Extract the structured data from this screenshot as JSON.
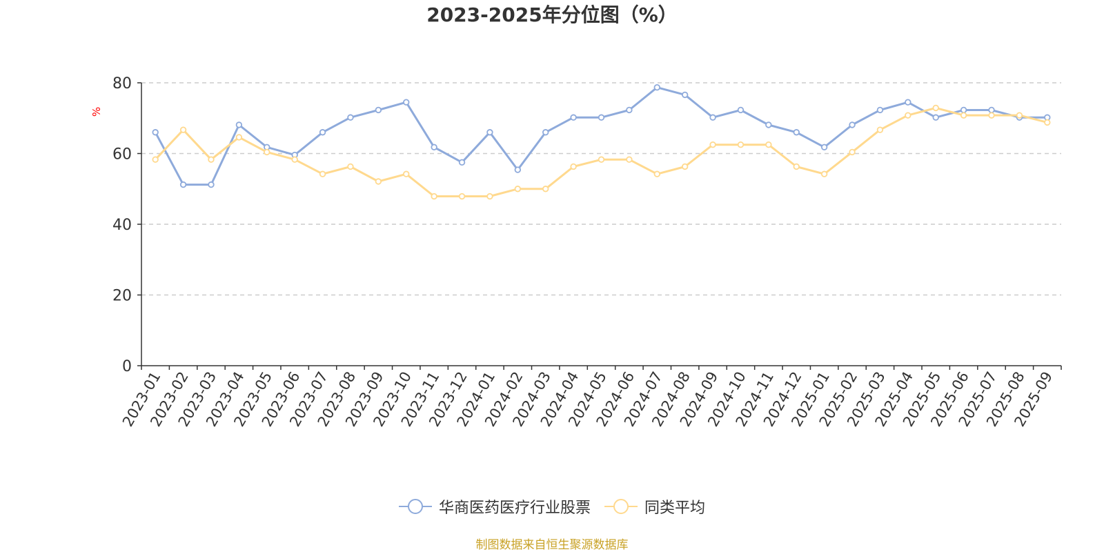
{
  "chart_data": {
    "type": "line",
    "title": "2023-2025年分位图（%）",
    "ylabel": "%",
    "xlabel": "",
    "ylim": [
      0,
      80
    ],
    "yticks": [
      0,
      20,
      40,
      60,
      80
    ],
    "grid": true,
    "legend_position": "bottom",
    "categories": [
      "2023-01",
      "2023-02",
      "2023-03",
      "2023-04",
      "2023-05",
      "2023-06",
      "2023-07",
      "2023-08",
      "2023-09",
      "2023-10",
      "2023-11",
      "2023-12",
      "2024-01",
      "2024-02",
      "2024-03",
      "2024-04",
      "2024-05",
      "2024-06",
      "2024-07",
      "2024-08",
      "2024-09",
      "2024-10",
      "2024-11",
      "2024-12",
      "2025-01",
      "2025-02",
      "2025-03",
      "2025-04",
      "2025-05",
      "2025-06",
      "2025-07",
      "2025-08",
      "2025-09"
    ],
    "series": [
      {
        "name": "华商医药医疗行业股票",
        "color": "#8eaadb",
        "values": [
          66.0,
          51.2,
          51.2,
          68.1,
          61.8,
          59.6,
          66.0,
          70.2,
          72.3,
          74.5,
          61.8,
          57.5,
          66.0,
          55.4,
          66.0,
          70.2,
          70.2,
          72.3,
          78.7,
          76.6,
          70.2,
          72.3,
          68.1,
          66.0,
          61.8,
          68.1,
          72.3,
          74.5,
          70.2,
          72.3,
          72.3,
          70.2,
          70.2
        ]
      },
      {
        "name": "同类平均",
        "color": "#ffd98e",
        "values": [
          58.3,
          66.7,
          58.3,
          64.6,
          60.4,
          58.3,
          54.2,
          56.3,
          52.1,
          54.2,
          47.9,
          47.9,
          47.9,
          50.0,
          50.0,
          56.3,
          58.3,
          58.3,
          54.2,
          56.3,
          62.5,
          62.5,
          62.5,
          56.3,
          54.2,
          60.4,
          66.7,
          70.8,
          72.9,
          70.8,
          70.8,
          70.8,
          68.8
        ]
      }
    ]
  },
  "source": {
    "text": "制图数据来自恒生聚源数据库",
    "color": "#c9a227"
  },
  "colors": {
    "axis": "#333333",
    "grid": "#cccccc",
    "ylabel": "#ff0000"
  }
}
